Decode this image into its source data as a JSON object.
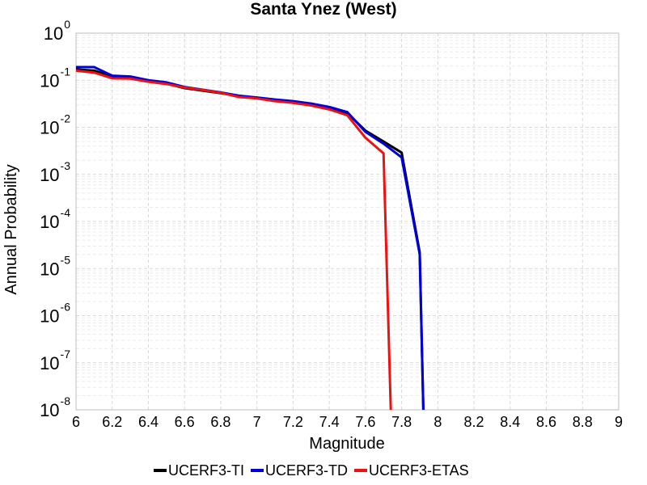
{
  "chart_data": {
    "type": "line",
    "title": "Santa Ynez (West)",
    "xlabel": "Magnitude",
    "ylabel": "Annual Probability",
    "xlim": [
      6,
      9
    ],
    "ylim": [
      1e-08,
      1
    ],
    "yscale": "log",
    "x_ticks": [
      "6",
      "6.2",
      "6.4",
      "6.6",
      "6.8",
      "7",
      "7.2",
      "7.4",
      "7.6",
      "7.8",
      "8",
      "8.2",
      "8.4",
      "8.6",
      "8.8",
      "9"
    ],
    "y_ticks": [
      {
        "base": "10",
        "exp": "0"
      },
      {
        "base": "10",
        "exp": "-1"
      },
      {
        "base": "10",
        "exp": "-2"
      },
      {
        "base": "10",
        "exp": "-3"
      },
      {
        "base": "10",
        "exp": "-4"
      },
      {
        "base": "10",
        "exp": "-5"
      },
      {
        "base": "10",
        "exp": "-6"
      },
      {
        "base": "10",
        "exp": "-7"
      },
      {
        "base": "10",
        "exp": "-8"
      }
    ],
    "grid": true,
    "legend_position": "bottom",
    "series": [
      {
        "name": "UCERF3-TI",
        "color": "#000000",
        "x": [
          6.0,
          6.1,
          6.2,
          6.3,
          6.4,
          6.5,
          6.6,
          6.7,
          6.8,
          6.9,
          7.0,
          7.1,
          7.2,
          7.3,
          7.4,
          7.5,
          7.6,
          7.7,
          7.8,
          7.9,
          7.92
        ],
        "y": [
          0.17,
          0.16,
          0.12,
          0.115,
          0.095,
          0.085,
          0.068,
          0.06,
          0.053,
          0.046,
          0.042,
          0.038,
          0.035,
          0.031,
          0.026,
          0.02,
          0.0085,
          0.005,
          0.0029,
          2.2e-05,
          1e-08
        ]
      },
      {
        "name": "UCERF3-TD",
        "color": "#0000dd",
        "x": [
          6.0,
          6.1,
          6.2,
          6.3,
          6.4,
          6.5,
          6.6,
          6.7,
          6.8,
          6.9,
          7.0,
          7.1,
          7.2,
          7.3,
          7.4,
          7.5,
          7.6,
          7.7,
          7.8,
          7.9,
          7.92
        ],
        "y": [
          0.19,
          0.19,
          0.125,
          0.12,
          0.1,
          0.09,
          0.072,
          0.063,
          0.055,
          0.047,
          0.043,
          0.039,
          0.036,
          0.032,
          0.027,
          0.021,
          0.008,
          0.0045,
          0.0023,
          2e-05,
          1e-08
        ]
      },
      {
        "name": "UCERF3-ETAS",
        "color": "#ee1111",
        "x": [
          6.0,
          6.1,
          6.2,
          6.3,
          6.4,
          6.5,
          6.6,
          6.7,
          6.8,
          6.9,
          7.0,
          7.1,
          7.2,
          7.3,
          7.4,
          7.5,
          7.6,
          7.7,
          7.74
        ],
        "y": [
          0.16,
          0.145,
          0.11,
          0.108,
          0.093,
          0.083,
          0.07,
          0.062,
          0.054,
          0.044,
          0.041,
          0.036,
          0.033,
          0.029,
          0.024,
          0.018,
          0.006,
          0.0028,
          1e-08
        ]
      }
    ]
  }
}
